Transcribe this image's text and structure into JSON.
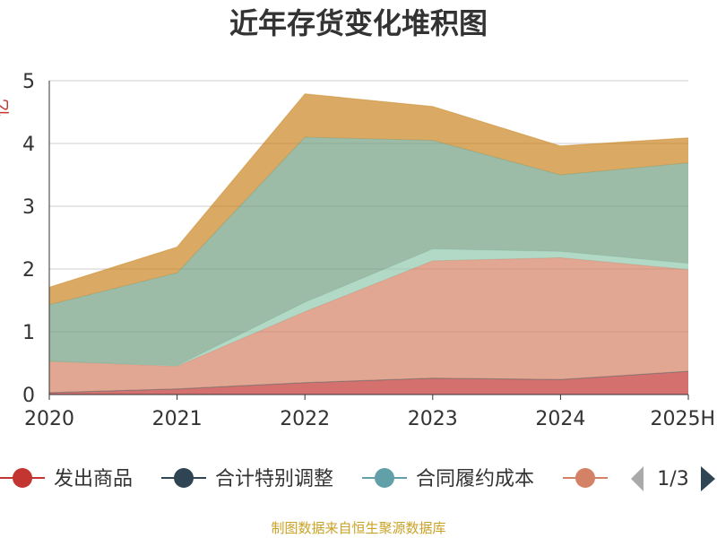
{
  "chart_data": {
    "type": "area",
    "title": "近年存货变化堆积图",
    "ylabel": "亿",
    "categories": [
      "2020",
      "2021",
      "2022",
      "2023",
      "2024",
      "2025H"
    ],
    "ylim": [
      0,
      5
    ],
    "yticks": [
      "0",
      "1",
      "2",
      "3",
      "4",
      "5"
    ],
    "grid": true,
    "legend_position": "bottom",
    "legend_page": "1/3",
    "series": [
      {
        "name": "发出商品",
        "color": "#c23531",
        "values": [
          0.03,
          0.09,
          0.19,
          0.26,
          0.24,
          0.37
        ]
      },
      {
        "name": "合计特别调整",
        "color": "#2f4554",
        "values": [
          0,
          0,
          0,
          0,
          0,
          0
        ]
      },
      {
        "name": "合同履约成本",
        "color": "#61a0a8",
        "values": [
          0,
          0,
          0,
          0,
          0,
          0
        ]
      },
      {
        "name": "",
        "color": "#d48265",
        "values": [
          0.5,
          0.36,
          1.13,
          1.87,
          1.94,
          1.62
        ]
      },
      {
        "name": "",
        "color": "#91c7ae",
        "values": [
          0.0,
          0.01,
          0.15,
          0.19,
          0.1,
          0.1
        ]
      },
      {
        "name": "",
        "color": "#749f83",
        "values": [
          0.9,
          1.48,
          2.63,
          1.73,
          1.22,
          1.6
        ]
      },
      {
        "name": "",
        "color": "#ca8622",
        "values": [
          0.28,
          0.41,
          0.69,
          0.54,
          0.46,
          0.4
        ]
      }
    ]
  },
  "footer": {
    "source": "制图数据来自恒生聚源数据库"
  }
}
